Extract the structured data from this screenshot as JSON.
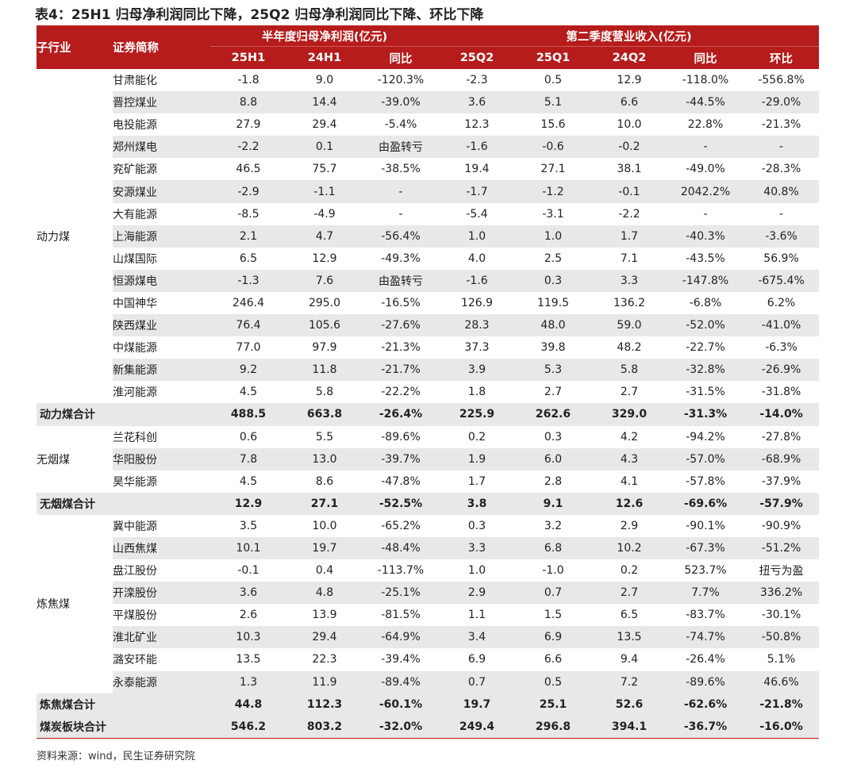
{
  "title": "表4：25H1 归母净利润同比下降，25Q2 归母净利润同比下降、环比下降",
  "headers": {
    "sub_industry": "子行业",
    "security_name": "证券简称",
    "group_profit": "半年度归母净利润(亿元)",
    "group_revenue": "第二季度营业收入(亿元)",
    "cols": [
      "25H1",
      "24H1",
      "同比",
      "25Q2",
      "25Q1",
      "24Q2",
      "同比",
      "环比"
    ]
  },
  "sections": [
    {
      "category": "动力煤",
      "rows": [
        [
          "甘肃能化",
          "-1.8",
          "9.0",
          "-120.3%",
          "-2.3",
          "0.5",
          "12.9",
          "-118.0%",
          "-556.8%"
        ],
        [
          "晋控煤业",
          "8.8",
          "14.4",
          "-39.0%",
          "3.6",
          "5.1",
          "6.6",
          "-44.5%",
          "-29.0%"
        ],
        [
          "电投能源",
          "27.9",
          "29.4",
          "-5.4%",
          "12.3",
          "15.6",
          "10.0",
          "22.8%",
          "-21.3%"
        ],
        [
          "郑州煤电",
          "-2.2",
          "0.1",
          "由盈转亏",
          "-1.6",
          "-0.6",
          "-0.2",
          "-",
          "-"
        ],
        [
          "兖矿能源",
          "46.5",
          "75.7",
          "-38.5%",
          "19.4",
          "27.1",
          "38.1",
          "-49.0%",
          "-28.3%"
        ],
        [
          "安源煤业",
          "-2.9",
          "-1.1",
          "-",
          "-1.7",
          "-1.2",
          "-0.1",
          "2042.2%",
          "40.8%"
        ],
        [
          "大有能源",
          "-8.5",
          "-4.9",
          "-",
          "-5.4",
          "-3.1",
          "-2.2",
          "-",
          "-"
        ],
        [
          "上海能源",
          "2.1",
          "4.7",
          "-56.4%",
          "1.0",
          "1.0",
          "1.7",
          "-40.3%",
          "-3.6%"
        ],
        [
          "山煤国际",
          "6.5",
          "12.9",
          "-49.3%",
          "4.0",
          "2.5",
          "7.1",
          "-43.5%",
          "56.9%"
        ],
        [
          "恒源煤电",
          "-1.3",
          "7.6",
          "由盈转亏",
          "-1.6",
          "0.3",
          "3.3",
          "-147.8%",
          "-675.4%"
        ],
        [
          "中国神华",
          "246.4",
          "295.0",
          "-16.5%",
          "126.9",
          "119.5",
          "136.2",
          "-6.8%",
          "6.2%"
        ],
        [
          "陕西煤业",
          "76.4",
          "105.6",
          "-27.6%",
          "28.3",
          "48.0",
          "59.0",
          "-52.0%",
          "-41.0%"
        ],
        [
          "中煤能源",
          "77.0",
          "97.9",
          "-21.3%",
          "37.3",
          "39.8",
          "48.2",
          "-22.7%",
          "-6.3%"
        ],
        [
          "新集能源",
          "9.2",
          "11.8",
          "-21.7%",
          "3.9",
          "5.3",
          "5.8",
          "-32.8%",
          "-26.9%"
        ],
        [
          "淮河能源",
          "4.5",
          "5.8",
          "-22.2%",
          "1.8",
          "2.7",
          "2.7",
          "-31.5%",
          "-31.8%"
        ]
      ],
      "total": [
        "动力煤合计",
        "",
        "488.5",
        "663.8",
        "-26.4%",
        "225.9",
        "262.6",
        "329.0",
        "-31.3%",
        "-14.0%"
      ]
    },
    {
      "category": "无烟煤",
      "rows": [
        [
          "兰花科创",
          "0.6",
          "5.5",
          "-89.6%",
          "0.2",
          "0.3",
          "4.2",
          "-94.2%",
          "-27.8%"
        ],
        [
          "华阳股份",
          "7.8",
          "13.0",
          "-39.7%",
          "1.9",
          "6.0",
          "4.3",
          "-57.0%",
          "-68.9%"
        ],
        [
          "昊华能源",
          "4.5",
          "8.6",
          "-47.8%",
          "1.7",
          "2.8",
          "4.1",
          "-57.8%",
          "-37.9%"
        ]
      ],
      "total": [
        "无烟煤合计",
        "",
        "12.9",
        "27.1",
        "-52.5%",
        "3.8",
        "9.1",
        "12.6",
        "-69.6%",
        "-57.9%"
      ]
    },
    {
      "category": "炼焦煤",
      "rows": [
        [
          "冀中能源",
          "3.5",
          "10.0",
          "-65.2%",
          "0.3",
          "3.2",
          "2.9",
          "-90.1%",
          "-90.9%"
        ],
        [
          "山西焦煤",
          "10.1",
          "19.7",
          "-48.4%",
          "3.3",
          "6.8",
          "10.2",
          "-67.3%",
          "-51.2%"
        ],
        [
          "盘江股份",
          "-0.1",
          "0.4",
          "-113.7%",
          "1.0",
          "-1.0",
          "0.2",
          "523.7%",
          "扭亏为盈"
        ],
        [
          "开滦股份",
          "3.6",
          "4.8",
          "-25.1%",
          "2.9",
          "0.7",
          "2.7",
          "7.7%",
          "336.2%"
        ],
        [
          "平煤股份",
          "2.6",
          "13.9",
          "-81.5%",
          "1.1",
          "1.5",
          "6.5",
          "-83.7%",
          "-30.1%"
        ],
        [
          "淮北矿业",
          "10.3",
          "29.4",
          "-64.9%",
          "3.4",
          "6.9",
          "13.5",
          "-74.7%",
          "-50.8%"
        ],
        [
          "潞安环能",
          "13.5",
          "22.3",
          "-39.4%",
          "6.9",
          "6.6",
          "9.4",
          "-26.4%",
          "5.1%"
        ],
        [
          "永泰能源",
          "1.3",
          "11.9",
          "-89.4%",
          "0.7",
          "0.5",
          "7.2",
          "-89.6%",
          "46.6%"
        ]
      ],
      "total": [
        "炼焦煤合计",
        "",
        "44.8",
        "112.3",
        "-60.1%",
        "19.7",
        "25.1",
        "52.6",
        "-62.6%",
        "-21.8%"
      ]
    }
  ],
  "grand_total": [
    "煤炭板块合计",
    "",
    "546.2",
    "803.2",
    "-32.0%",
    "249.4",
    "296.8",
    "394.1",
    "-36.7%",
    "-16.0%"
  ],
  "source": "资料来源：wind，民生证券研究院"
}
